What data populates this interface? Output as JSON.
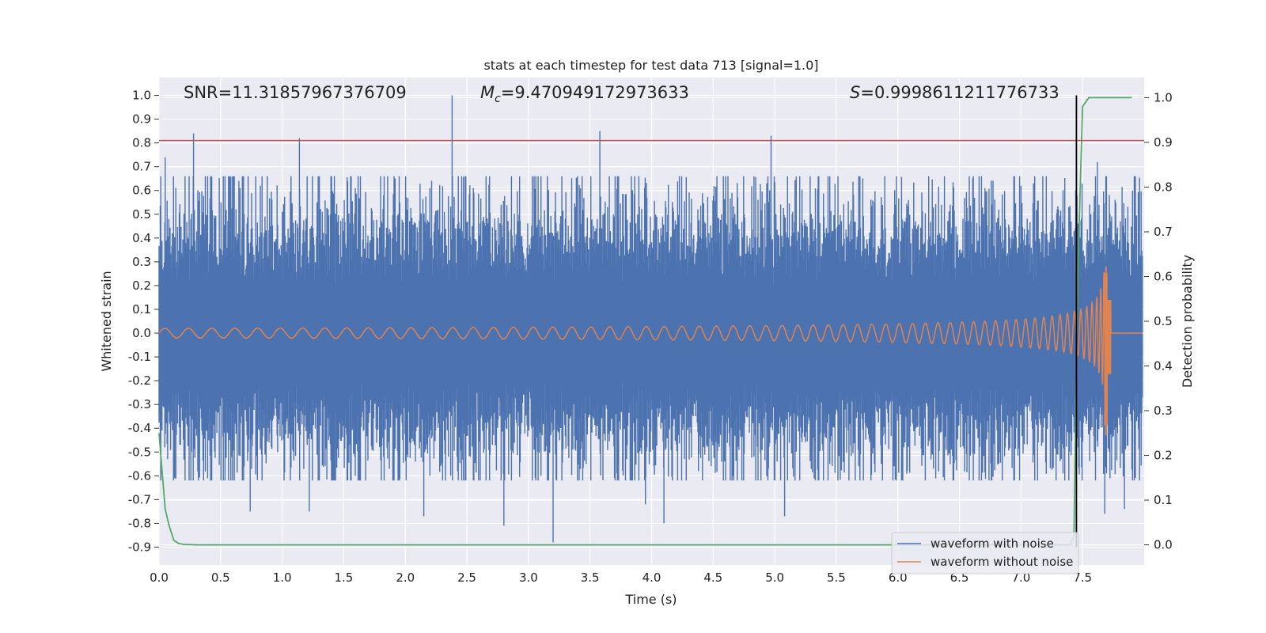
{
  "chart_data": {
    "type": "line",
    "title": "stats at each timestep for test data 713 [signal=1.0]",
    "xlabel": "Time (s)",
    "ylabel": "Whitened strain",
    "y2label": "Detection probability",
    "xlim": [
      0.0,
      8.0
    ],
    "ylim": [
      -0.975,
      1.075
    ],
    "y2lim": [
      -0.045,
      1.045
    ],
    "xticks": [
      "0.0",
      "0.5",
      "1.0",
      "1.5",
      "2.0",
      "2.5",
      "3.0",
      "3.5",
      "4.0",
      "4.5",
      "5.0",
      "5.5",
      "6.0",
      "6.5",
      "7.0",
      "7.5"
    ],
    "yticks": [
      "1.0",
      "0.9",
      "0.8",
      "0.7",
      "0.6",
      "0.5",
      "0.4",
      "0.3",
      "0.2",
      "0.1",
      "0.0",
      "-0.1",
      "-0.2",
      "-0.3",
      "-0.4",
      "-0.5",
      "-0.6",
      "-0.7",
      "-0.8",
      "-0.9"
    ],
    "y2ticks": [
      "1.0",
      "0.9",
      "0.8",
      "0.7",
      "0.6",
      "0.5",
      "0.4",
      "0.3",
      "0.2",
      "0.1",
      "0.0"
    ],
    "annotations": {
      "snr": "SNR=11.31857967376709",
      "mc_label": "M",
      "mc_sub": "c",
      "mc_value": "=9.470949172973633",
      "s_label": "S",
      "s_value": "=0.9998611211776733"
    },
    "threshold": {
      "value": 0.81,
      "color": "#c44e52"
    },
    "event_time": 7.45,
    "series": [
      {
        "name": "waveform with noise",
        "color": "#4c72b0",
        "axis": "left",
        "kind": "noise",
        "typical_amplitude": 0.32,
        "spikes": [
          {
            "x": 0.05,
            "y": 0.74
          },
          {
            "x": 0.07,
            "y": -0.53
          },
          {
            "x": 0.28,
            "y": 0.84
          },
          {
            "x": 1.14,
            "y": 0.82
          },
          {
            "x": 2.38,
            "y": 1.0
          },
          {
            "x": 3.2,
            "y": -0.88
          },
          {
            "x": 3.58,
            "y": 0.85
          },
          {
            "x": 4.97,
            "y": 0.83
          },
          {
            "x": 2.8,
            "y": -0.81
          },
          {
            "x": 0.74,
            "y": -0.75
          },
          {
            "x": 2.15,
            "y": -0.77
          },
          {
            "x": 3.95,
            "y": -0.72
          },
          {
            "x": 4.1,
            "y": -0.8
          },
          {
            "x": 5.08,
            "y": -0.77
          },
          {
            "x": 6.25,
            "y": 0.66
          },
          {
            "x": 7.0,
            "y": 0.62
          },
          {
            "x": 7.62,
            "y": 0.72
          },
          {
            "x": 7.68,
            "y": -0.76
          },
          {
            "x": 7.84,
            "y": -0.74
          },
          {
            "x": 1.22,
            "y": -0.75
          },
          {
            "x": 4.62,
            "y": 0.66
          }
        ]
      },
      {
        "name": "waveform without noise",
        "color": "#dd8452",
        "axis": "left",
        "kind": "chirp",
        "base_amplitude": 0.02,
        "peak_amplitude": 0.28,
        "min_at_peak": -0.43,
        "peak_time": 7.7
      },
      {
        "name": "detection probability",
        "color": "#55a868",
        "axis": "right",
        "x": [
          0.0,
          0.02,
          0.05,
          0.08,
          0.12,
          0.16,
          0.2,
          0.3,
          0.5,
          1.0,
          2.0,
          3.0,
          4.0,
          5.0,
          6.0,
          7.0,
          7.4,
          7.43,
          7.46,
          7.5,
          7.55,
          7.6,
          7.7,
          7.9
        ],
        "values": [
          0.25,
          0.18,
          0.08,
          0.045,
          0.01,
          0.003,
          0.001,
          0.0,
          0.0,
          0.0,
          0.0,
          0.0,
          0.0,
          0.0,
          0.0,
          0.0,
          0.0,
          0.02,
          0.6,
          0.98,
          1.0,
          1.0,
          1.0,
          1.0
        ]
      }
    ],
    "legend": {
      "placement": "lower-right",
      "entries": [
        {
          "label": "waveform with noise",
          "color": "#4c72b0"
        },
        {
          "label": "waveform without noise",
          "color": "#dd8452"
        }
      ]
    }
  }
}
